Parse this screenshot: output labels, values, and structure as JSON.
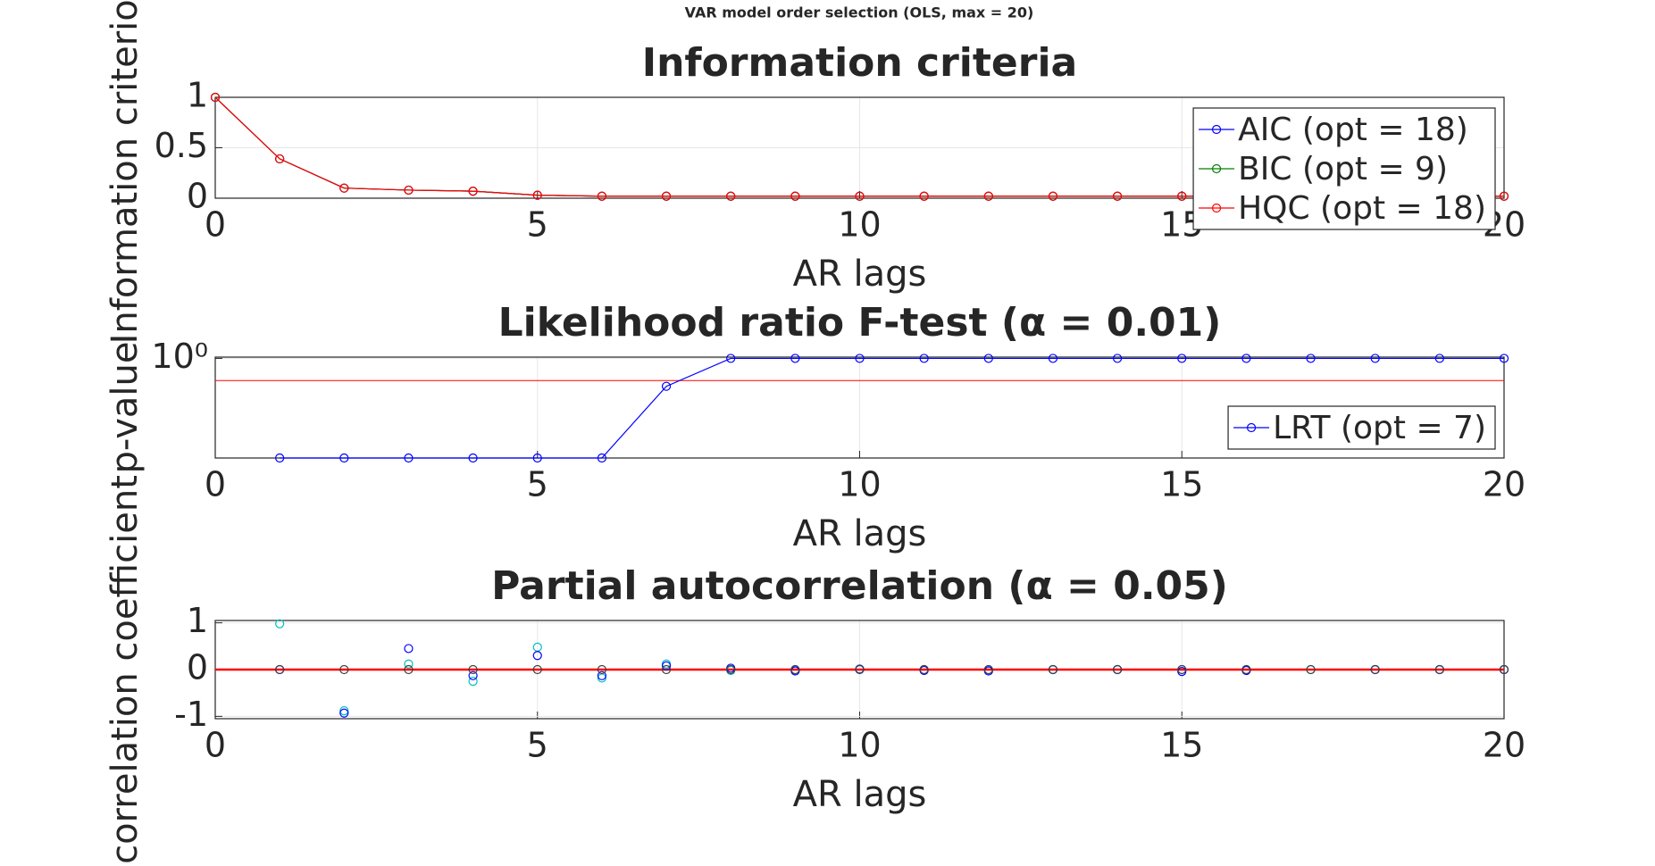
{
  "title": "VAR model order selection (OLS, max = 20)",
  "chart_data": [
    {
      "type": "line",
      "title": "Information criteria",
      "xlabel": "AR lags",
      "ylabel": "Information criterion (",
      "x": [
        0,
        1,
        2,
        3,
        4,
        5,
        6,
        7,
        8,
        9,
        10,
        11,
        12,
        13,
        14,
        15,
        16,
        17,
        18,
        19,
        20
      ],
      "series": [
        {
          "name": "AIC (opt = 18)",
          "color": "#0000ff",
          "values": [
            1,
            0.39,
            0.1,
            0.08,
            0.07,
            0.03,
            0.02,
            0.02,
            0.02,
            0.02,
            0.02,
            0.02,
            0.02,
            0.02,
            0.02,
            0.02,
            0.02,
            0.02,
            0.02,
            0.02,
            0.02
          ]
        },
        {
          "name": "BIC (opt = 9)",
          "color": "#008000",
          "values": [
            1,
            0.39,
            0.1,
            0.08,
            0.07,
            0.03,
            0.02,
            0.02,
            0.02,
            0.02,
            0.02,
            0.02,
            0.02,
            0.02,
            0.02,
            0.02,
            0.02,
            0.02,
            0.02,
            0.02,
            0.02
          ]
        },
        {
          "name": "HQC (opt = 18)",
          "color": "#ff0000",
          "values": [
            1,
            0.39,
            0.1,
            0.08,
            0.07,
            0.03,
            0.02,
            0.02,
            0.02,
            0.02,
            0.02,
            0.02,
            0.02,
            0.02,
            0.02,
            0.02,
            0.02,
            0.02,
            0.02,
            0.02,
            0.02
          ]
        }
      ],
      "xlim": [
        0,
        20
      ],
      "xticks": [
        0,
        5,
        10,
        15,
        20
      ],
      "ylim": [
        0,
        1
      ],
      "yticks": [
        0,
        0.5,
        1
      ],
      "grid": true,
      "legend": "northeast"
    },
    {
      "type": "line",
      "log_y": true,
      "title": "Likelihood ratio F-test (α = 0.01)",
      "xlabel": "AR lags",
      "ylabel": "p-value",
      "x": [
        0,
        1,
        2,
        3,
        4,
        5,
        6,
        7,
        8,
        9,
        10,
        11,
        12,
        13,
        14,
        15,
        16,
        17,
        18,
        19,
        20
      ],
      "series": [
        {
          "name": "LRT (opt = 7)",
          "color": "#0000ff",
          "values": [
            null,
            1e-09,
            1e-09,
            1e-09,
            1e-09,
            1e-09,
            1e-09,
            0.003,
            1,
            1,
            1,
            1,
            1,
            1,
            1,
            1,
            1,
            1,
            1,
            1,
            1
          ]
        }
      ],
      "threshold": 0.01,
      "threshold_color": "#ff0000",
      "xlim": [
        0,
        20
      ],
      "xticks": [
        0,
        5,
        10,
        15,
        20
      ],
      "ylim": [
        1e-09,
        1.3
      ],
      "yticks": [
        {
          "value": 1,
          "label": "10⁰"
        }
      ],
      "grid": true,
      "legend": "southeast"
    },
    {
      "type": "scatter",
      "title": "Partial autocorrelation (α = 0.05)",
      "xlabel": "AR lags",
      "ylabel": "correlation coefficient",
      "x": [
        1,
        2,
        3,
        4,
        5,
        6,
        7,
        8,
        9,
        10,
        11,
        12,
        13,
        14,
        15,
        16,
        17,
        18,
        19,
        20
      ],
      "series": [
        {
          "color": "#00bfbf",
          "values": [
            0.98,
            -0.88,
            0.12,
            -0.25,
            0.48,
            -0.18,
            0.12,
            -0.02,
            -0.02,
            0.01,
            0,
            -0.01,
            0,
            0,
            0,
            0,
            0,
            0,
            0,
            0
          ]
        },
        {
          "color": "#0000ff",
          "values": [
            0,
            -0.93,
            0.45,
            -0.13,
            0.3,
            -0.13,
            0.08,
            0.03,
            -0.03,
            0.01,
            -0.02,
            -0.03,
            0,
            0,
            -0.04,
            -0.02,
            null,
            0,
            0,
            0
          ]
        },
        {
          "color": "#404040",
          "values": [
            0,
            0,
            0,
            0,
            0,
            0,
            0,
            0,
            0,
            0,
            0,
            0,
            0,
            0,
            0,
            0,
            0,
            0,
            0,
            0
          ]
        }
      ],
      "bounds": [
        -0.01,
        0.01
      ],
      "bounds_color": "#ff0000",
      "xlim": [
        0,
        20
      ],
      "xticks": [
        0,
        5,
        10,
        15,
        20
      ],
      "ylim": [
        -1.05,
        1.05
      ],
      "yticks": [
        -1,
        0,
        1
      ],
      "grid": true
    }
  ]
}
